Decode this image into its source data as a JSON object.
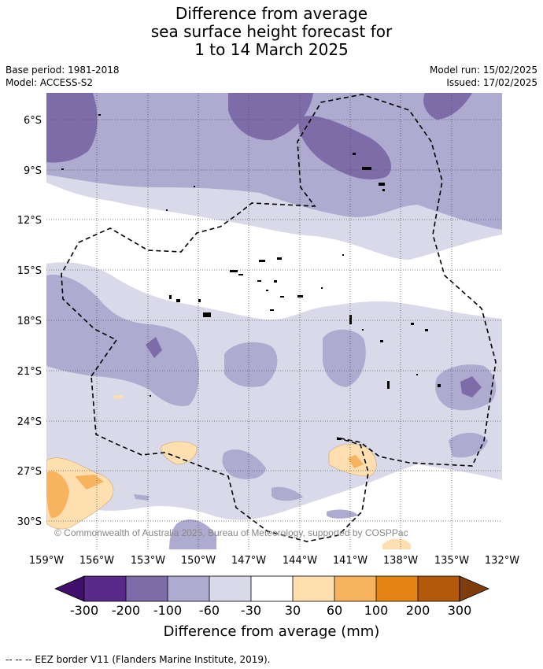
{
  "title": {
    "line1": "Difference from average",
    "line2": "sea surface height forecast for",
    "line3": "1 to 14 March 2025"
  },
  "meta": {
    "base_period": "Base period: 1981-2018",
    "model": "Model: ACCESS-S2",
    "model_run": "Model run: 15/02/2025",
    "issued": "Issued: 17/02/2025"
  },
  "map": {
    "lat_labels": [
      "6°S",
      "9°S",
      "12°S",
      "15°S",
      "18°S",
      "21°S",
      "24°S",
      "27°S",
      "30°S"
    ],
    "lon_labels": [
      "159°W",
      "156°W",
      "153°W",
      "150°W",
      "147°W",
      "144°W",
      "141°W",
      "138°W",
      "135°W",
      "132°W"
    ],
    "copyright": "© Commonwealth of Australia 2025, Bureau of Meteorology, supported by COSPPac",
    "lat_range": [
      -31.4,
      -4.2
    ],
    "lon_range": [
      -159,
      -132
    ]
  },
  "colorbar": {
    "tick_labels": [
      "-300",
      "-200",
      "-100",
      "-60",
      "-30",
      "30",
      "60",
      "100",
      "200",
      "300"
    ],
    "colors": [
      "#3f0f6b",
      "#5a2a8a",
      "#7e6ca9",
      "#aeaad0",
      "#d9d9ea",
      "#ffffff",
      "#ffdfb0",
      "#f8b35f",
      "#e38415",
      "#b2590c",
      "#7f3d0d"
    ],
    "title": "Difference from average (mm)"
  },
  "footer": "--  --  -- EEZ border V11 (Flanders Marine Institute, 2019)."
}
